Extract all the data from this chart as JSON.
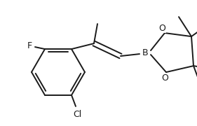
{
  "bg_color": "#ffffff",
  "line_color": "#1a1a1a",
  "line_width": 1.4,
  "font_size": 8.5,
  "figsize": [
    2.81,
    1.8
  ],
  "dpi": 100,
  "F_label": "F",
  "Cl_label": "Cl",
  "B_label": "B",
  "O_label": "O"
}
